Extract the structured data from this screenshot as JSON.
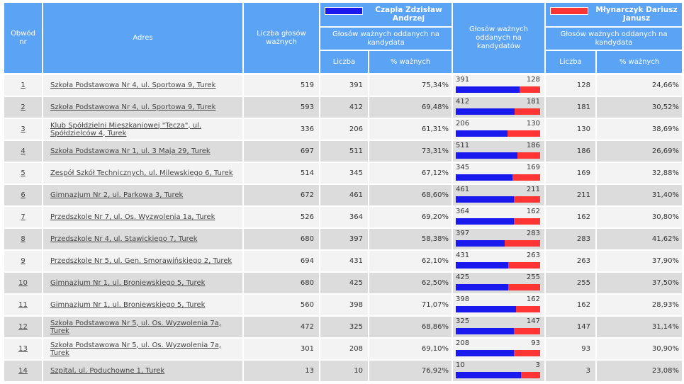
{
  "header": {
    "obwod": "Obwód nr",
    "adres": "Adres",
    "liczba_glosow": "Liczba głosów ważnych",
    "glosow_na_kandydata": "Głosów ważnych oddanych na kandydata",
    "glosow_na_kandydatow": "Głosów ważnych oddanych na kandydatów",
    "liczba": "Liczba",
    "pct_waznych": "% ważnych"
  },
  "candidates": [
    {
      "name": "Czapla Zdzisław Andrzej",
      "color": "#1a1aee"
    },
    {
      "name": "Młynarczyk Dariusz Janusz",
      "color": "#ff3535"
    }
  ],
  "rows": [
    {
      "nr": "1",
      "adres": "Szkoła Podstawowa Nr 4, ul. Sportowa 9, Turek",
      "wazne": "519",
      "a_liczba": "391",
      "a_pct": "75,34%",
      "b_liczba": "128",
      "b_pct": "24,66%"
    },
    {
      "nr": "2",
      "adres": "Szkoła Podstawowa Nr 4, ul. Sportowa 9, Turek",
      "wazne": "593",
      "a_liczba": "412",
      "a_pct": "69,48%",
      "b_liczba": "181",
      "b_pct": "30,52%"
    },
    {
      "nr": "3",
      "adres": "Klub Spółdzielni Mieszkaniowej \"Tecza\", ul. Spółdzielców 4, Turek",
      "wazne": "336",
      "a_liczba": "206",
      "a_pct": "61,31%",
      "b_liczba": "130",
      "b_pct": "38,69%"
    },
    {
      "nr": "4",
      "adres": "Szkoła Podstawowa Nr 1, ul. 3 Maja 29, Turek",
      "wazne": "697",
      "a_liczba": "511",
      "a_pct": "73,31%",
      "b_liczba": "186",
      "b_pct": "26,69%"
    },
    {
      "nr": "5",
      "adres": "Zespół Szkół Technicznych, ul. Milewskiego 6, Turek",
      "wazne": "514",
      "a_liczba": "345",
      "a_pct": "67,12%",
      "b_liczba": "169",
      "b_pct": "32,88%"
    },
    {
      "nr": "6",
      "adres": "Gimnazjum Nr 2, ul. Parkowa 3, Turek",
      "wazne": "672",
      "a_liczba": "461",
      "a_pct": "68,60%",
      "b_liczba": "211",
      "b_pct": "31,40%"
    },
    {
      "nr": "7",
      "adres": "Przedszkole Nr 7, ul. Os. Wyzwolenia 1a, Turek",
      "wazne": "526",
      "a_liczba": "364",
      "a_pct": "69,20%",
      "b_liczba": "162",
      "b_pct": "30,80%"
    },
    {
      "nr": "8",
      "adres": "Przedszkole Nr 4, ul. Stawickiego 7, Turek",
      "wazne": "680",
      "a_liczba": "397",
      "a_pct": "58,38%",
      "b_liczba": "283",
      "b_pct": "41,62%"
    },
    {
      "nr": "9",
      "adres": "Przedszkole Nr 5, ul. Gen. Smorawińskiego 2, Turek",
      "wazne": "694",
      "a_liczba": "431",
      "a_pct": "62,10%",
      "b_liczba": "263",
      "b_pct": "37,90%"
    },
    {
      "nr": "10",
      "adres": "Gimnazjum Nr 1, ul. Broniewskiego 5, Turek",
      "wazne": "680",
      "a_liczba": "425",
      "a_pct": "62,50%",
      "b_liczba": "255",
      "b_pct": "37,50%"
    },
    {
      "nr": "11",
      "adres": "Gimnazjum Nr 1, ul. Broniewskiego 5, Turek",
      "wazne": "560",
      "a_liczba": "398",
      "a_pct": "71,07%",
      "b_liczba": "162",
      "b_pct": "28,93%"
    },
    {
      "nr": "12",
      "adres": "Szkoła Podstawowa Nr 5, ul. Os. Wyzwolenia 7a, Turek",
      "wazne": "472",
      "a_liczba": "325",
      "a_pct": "68,86%",
      "b_liczba": "147",
      "b_pct": "31,14%"
    },
    {
      "nr": "13",
      "adres": "Szkoła Podstawowa Nr 5, ul. Os. Wyzwolenia 7a, Turek",
      "wazne": "301",
      "a_liczba": "208",
      "a_pct": "69,10%",
      "b_liczba": "93",
      "b_pct": "30,90%"
    },
    {
      "nr": "14",
      "adres": "Szpital, ul. Poduchowne 1, Turek",
      "wazne": "13",
      "a_liczba": "10",
      "a_pct": "76,92%",
      "b_liczba": "3",
      "b_pct": "23,08%"
    }
  ],
  "colors": {
    "header": "#5ba3f5",
    "row_light": "#f3f3f3",
    "row_dark": "#dcdcdc"
  }
}
